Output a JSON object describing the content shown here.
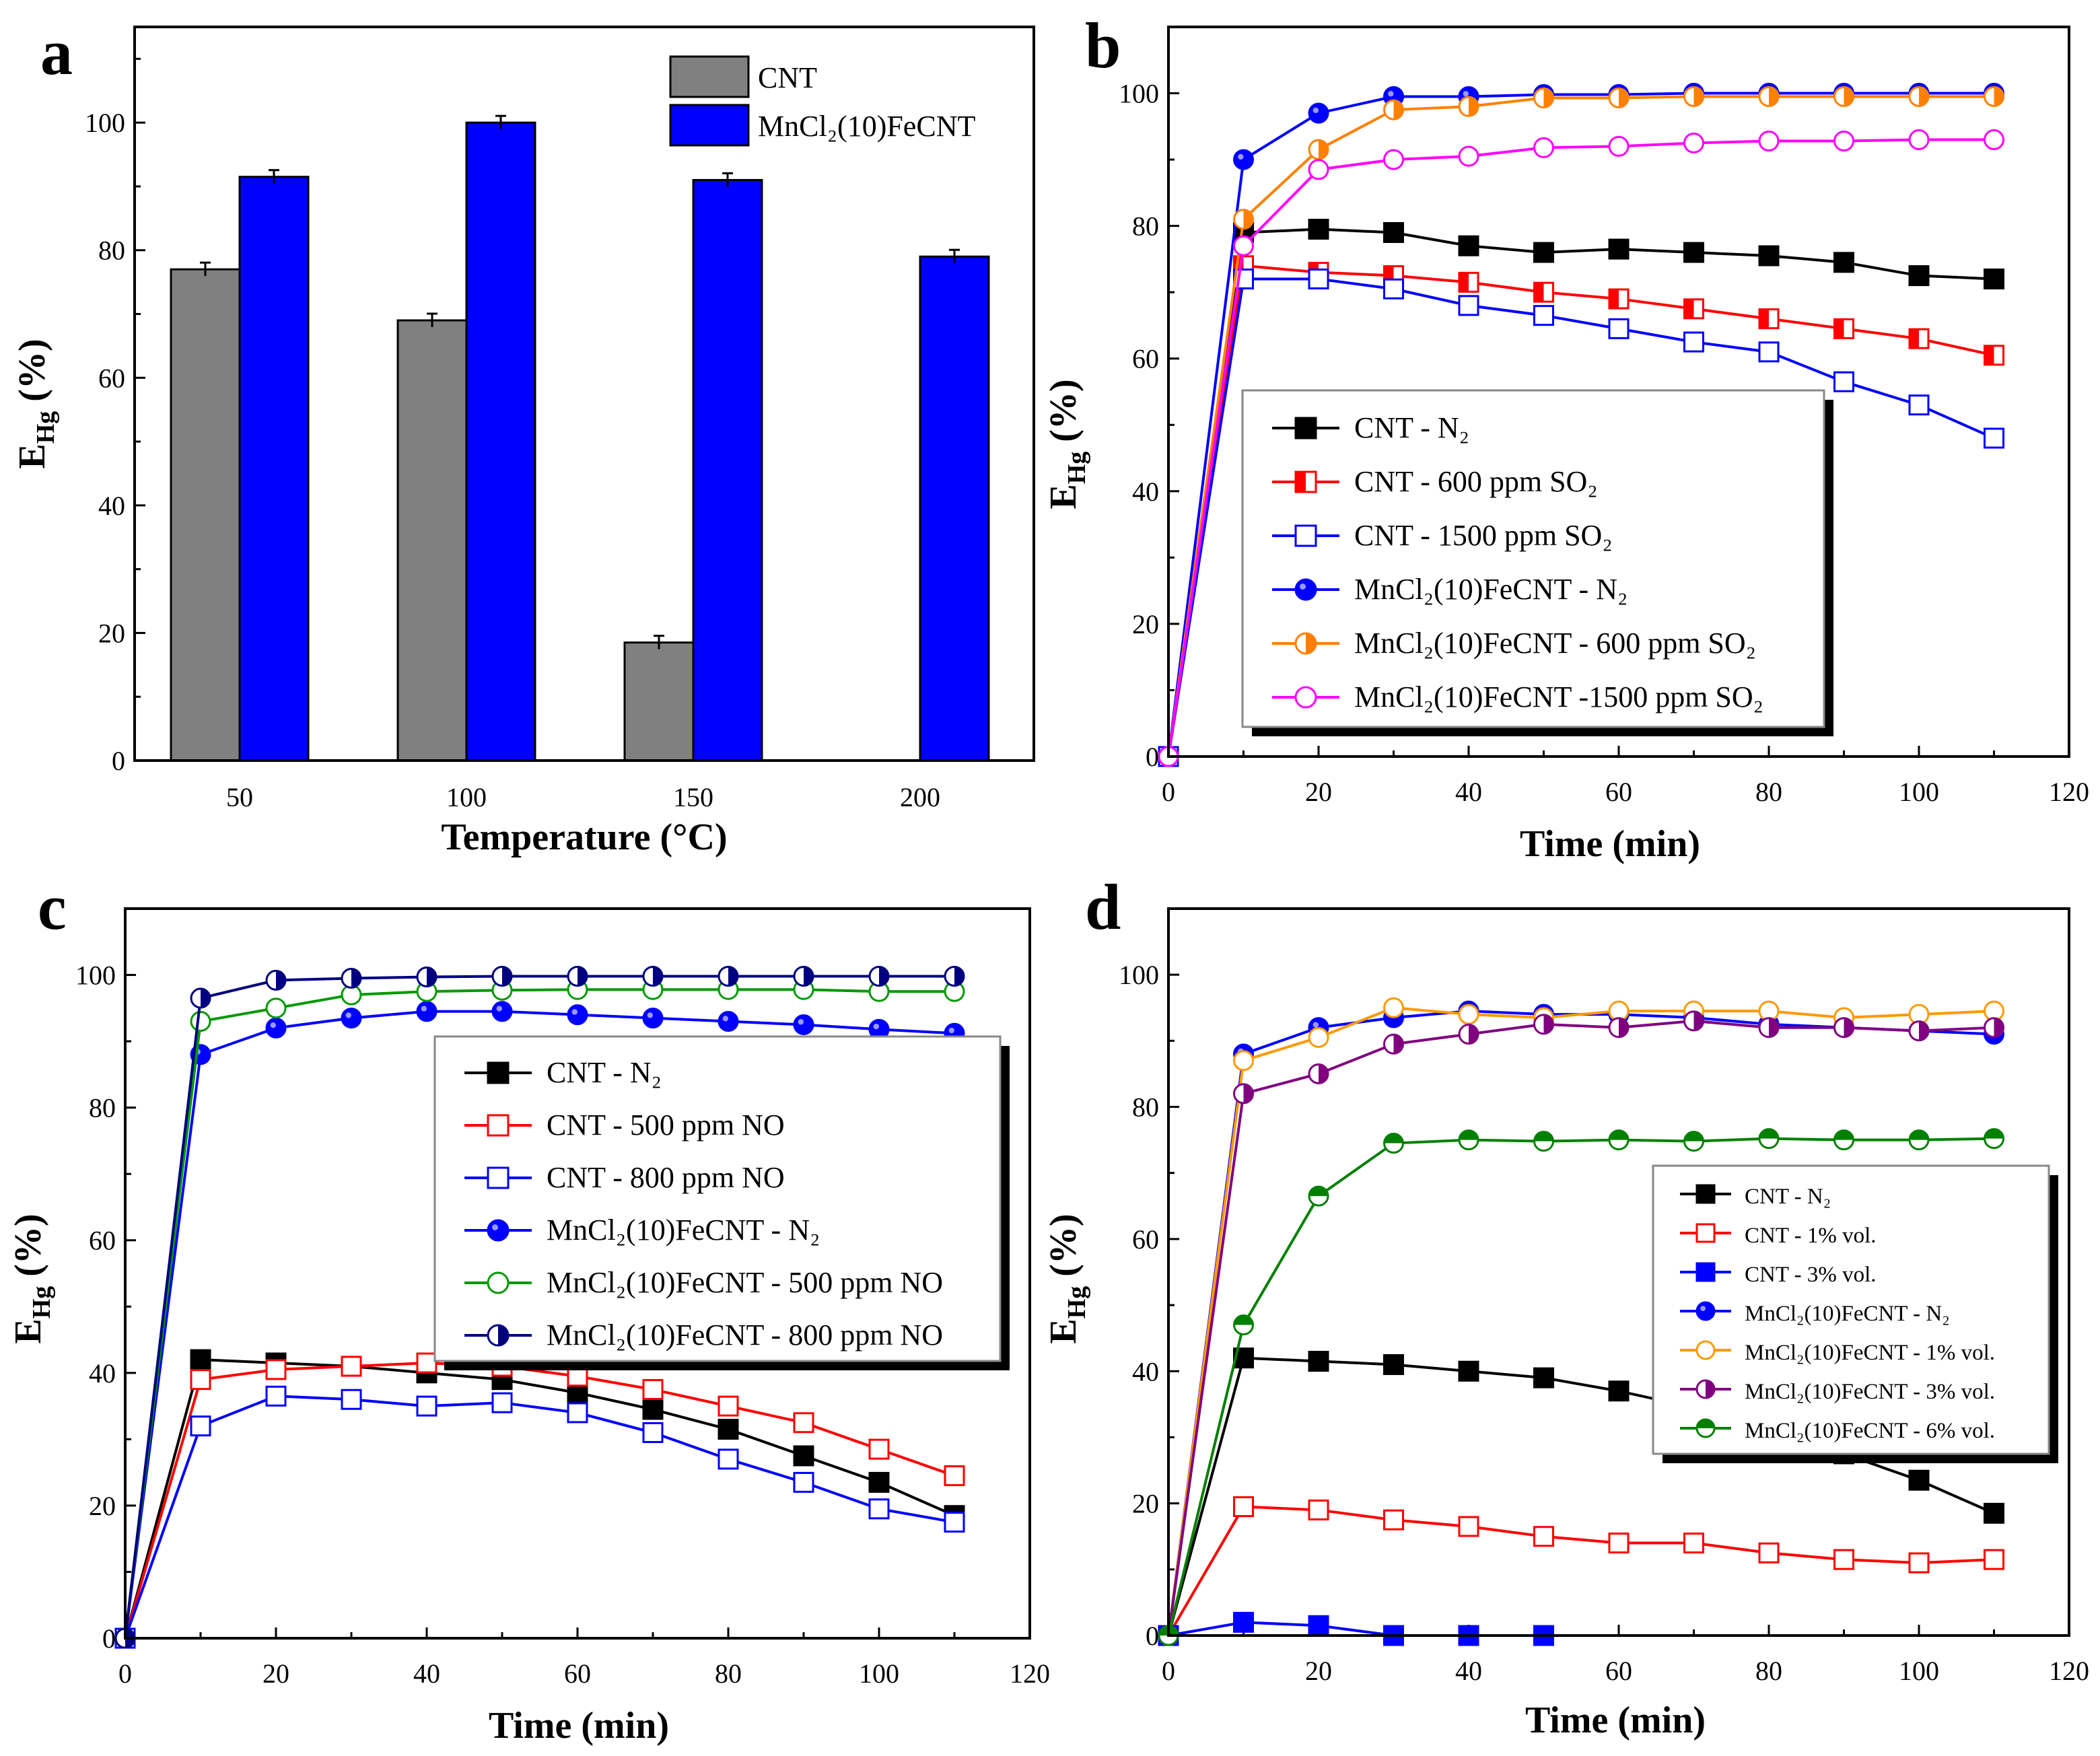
{
  "chart_data": [
    {
      "panel": "a",
      "type": "bar",
      "title": "",
      "xlabel": "Temperature (°C)",
      "ylabel": "E_Hg (%)",
      "ylabel_main": "E",
      "ylabel_sub": "Hg",
      "ylabel_tail": " (%)",
      "ylim": [
        0,
        115
      ],
      "yticks": [
        0,
        20,
        40,
        60,
        80,
        100
      ],
      "categories": [
        "50",
        "100",
        "150",
        "200"
      ],
      "series": [
        {
          "name": "CNT",
          "color": "#808080",
          "values": [
            77,
            69,
            18.5,
            null
          ]
        },
        {
          "name": "MnCl₂(10)FeCNT",
          "color": "#0000ff",
          "values": [
            91.5,
            100,
            91,
            79
          ]
        }
      ],
      "legend_position": "top-right"
    },
    {
      "panel": "b",
      "type": "line",
      "xlabel": "Time (min)",
      "ylabel": "E_Hg (%)",
      "ylabel_main": "E",
      "ylabel_sub": "Hg",
      "ylabel_tail": " (%)",
      "xlim": [
        0,
        120
      ],
      "ylim": [
        0,
        110
      ],
      "xticks": [
        0,
        20,
        40,
        60,
        80,
        100,
        120
      ],
      "yticks": [
        0,
        20,
        40,
        60,
        80,
        100
      ],
      "x": [
        0,
        10,
        20,
        30,
        40,
        50,
        60,
        70,
        80,
        90,
        100,
        110
      ],
      "series": [
        {
          "name": "CNT - N₂",
          "color": "#000000",
          "marker": "square-filled",
          "values": [
            0,
            79,
            79.5,
            79,
            77,
            76,
            76.5,
            76,
            75.5,
            74.5,
            72.5,
            72
          ]
        },
        {
          "name": "CNT - 600 ppm SO₂",
          "color": "#ff0000",
          "marker": "square-half",
          "values": [
            0,
            74,
            73,
            72.5,
            71.5,
            70,
            69,
            67.5,
            66,
            64.5,
            63,
            60.5
          ]
        },
        {
          "name": "CNT - 1500 ppm SO₂",
          "color": "#0000ff",
          "marker": "square-open",
          "values": [
            0,
            72,
            72,
            70.5,
            68,
            66.5,
            64.5,
            62.5,
            61,
            56.5,
            53,
            48
          ]
        },
        {
          "name": "MnCl₂(10)FeCNT - N₂",
          "color": "#0000ff",
          "marker": "circle-filled",
          "values": [
            0,
            90,
            97,
            99.5,
            99.5,
            99.8,
            99.8,
            100,
            100,
            100,
            100,
            100
          ]
        },
        {
          "name": "MnCl₂(10)FeCNT - 600 ppm SO₂",
          "color": "#ff8000",
          "marker": "circle-half",
          "values": [
            0,
            81,
            91.5,
            97.5,
            98,
            99.3,
            99.3,
            99.5,
            99.5,
            99.5,
            99.5,
            99.5
          ]
        },
        {
          "name": "MnCl₂(10)FeCNT -1500 ppm SO₂",
          "color": "#ff00ff",
          "marker": "circle-open",
          "values": [
            0,
            77,
            88.5,
            90,
            90.5,
            91.8,
            92,
            92.5,
            92.8,
            92.8,
            93,
            93
          ]
        }
      ],
      "legend_position": "lower-left"
    },
    {
      "panel": "c",
      "type": "line",
      "xlabel": "Time (min)",
      "ylabel": "E_Hg (%)",
      "ylabel_main": "E",
      "ylabel_sub": "Hg",
      "ylabel_tail": " (%)",
      "xlim": [
        0,
        120
      ],
      "ylim": [
        0,
        110
      ],
      "xticks": [
        0,
        20,
        40,
        60,
        80,
        100,
        120
      ],
      "yticks": [
        0,
        20,
        40,
        60,
        80,
        100
      ],
      "x": [
        0,
        10,
        20,
        30,
        40,
        50,
        60,
        70,
        80,
        90,
        100,
        110
      ],
      "series": [
        {
          "name": "CNT - N₂",
          "color": "#000000",
          "marker": "square-filled",
          "values": [
            0,
            42,
            41.5,
            41,
            40,
            39,
            37,
            34.5,
            31.5,
            27.5,
            23.5,
            18.5
          ]
        },
        {
          "name": "CNT - 500 ppm NO",
          "color": "#ff0000",
          "marker": "square-open",
          "values": [
            0,
            39,
            40.5,
            41,
            41.5,
            41,
            39.5,
            37.5,
            35,
            32.5,
            28.5,
            24.5
          ]
        },
        {
          "name": "CNT - 800 ppm NO",
          "color": "#0000ff",
          "marker": "square-open",
          "values": [
            0,
            32,
            36.5,
            36,
            35,
            35.5,
            34,
            31,
            27,
            23.5,
            19.5,
            17.5
          ]
        },
        {
          "name": "MnCl₂(10)FeCNT - N₂",
          "color": "#0000ff",
          "marker": "circle-filled",
          "values": [
            0,
            88,
            92,
            93.5,
            94.5,
            94.5,
            94,
            93.5,
            93,
            92.5,
            91.8,
            91.2
          ]
        },
        {
          "name": "MnCl₂(10)FeCNT - 500 ppm NO",
          "color": "#009900",
          "marker": "circle-open",
          "values": [
            0,
            93,
            95,
            97,
            97.5,
            97.7,
            97.8,
            97.8,
            97.8,
            97.8,
            97.5,
            97.5
          ]
        },
        {
          "name": "MnCl₂(10)FeCNT - 800 ppm NO",
          "color": "#000080",
          "marker": "circle-half",
          "values": [
            0,
            96.5,
            99.2,
            99.5,
            99.7,
            99.8,
            99.8,
            99.8,
            99.8,
            99.8,
            99.8,
            99.8
          ]
        }
      ],
      "legend_position": "center-right"
    },
    {
      "panel": "d",
      "type": "line",
      "xlabel": "Time (min)",
      "ylabel": "E_Hg (%)",
      "ylabel_main": "E",
      "ylabel_sub": "Hg",
      "ylabel_tail": " (%)",
      "xlim": [
        0,
        120
      ],
      "ylim": [
        0,
        110
      ],
      "xticks": [
        0,
        20,
        40,
        60,
        80,
        100,
        120
      ],
      "yticks": [
        0,
        20,
        40,
        60,
        80,
        100
      ],
      "x": [
        0,
        10,
        20,
        30,
        40,
        50,
        60,
        70,
        80,
        90,
        100,
        110
      ],
      "series": [
        {
          "name": "CNT - N₂",
          "color": "#000000",
          "marker": "square-filled",
          "values": [
            0,
            42,
            41.5,
            41,
            40,
            39,
            37,
            34.5,
            31.5,
            27.5,
            23.5,
            18.5
          ]
        },
        {
          "name": "CNT - 1% vol.",
          "color": "#ff0000",
          "marker": "square-open",
          "values": [
            0,
            19.5,
            19,
            17.5,
            16.5,
            15,
            14,
            14,
            12.5,
            11.5,
            11,
            11.5
          ]
        },
        {
          "name": "CNT - 3% vol.",
          "color": "#0000ff",
          "marker": "square-filled",
          "values": [
            0,
            2,
            1.5,
            0,
            0,
            0,
            null,
            null,
            null,
            null,
            null,
            null
          ]
        },
        {
          "name": "MnCl₂(10)FeCNT - N₂",
          "color": "#0000ff",
          "marker": "circle-filled",
          "values": [
            0,
            88,
            92,
            93.5,
            94.5,
            94,
            94,
            93.5,
            92.5,
            92,
            91.5,
            91
          ]
        },
        {
          "name": "MnCl₂(10)FeCNT - 1% vol.",
          "color": "#ff9900",
          "marker": "circle-open",
          "values": [
            0,
            87,
            90.5,
            95,
            94,
            93.5,
            94.5,
            94.5,
            94.5,
            93.5,
            94,
            94.5
          ]
        },
        {
          "name": "MnCl₂(10)FeCNT - 3% vol.",
          "color": "#800080",
          "marker": "circle-half",
          "values": [
            0,
            82,
            85,
            89.5,
            91,
            92.5,
            92,
            93,
            92,
            92,
            91.5,
            92
          ]
        },
        {
          "name": "MnCl₂(10)FeCNT - 6% vol.",
          "color": "#008000",
          "marker": "circle-halfh",
          "values": [
            0,
            47,
            66.5,
            74.5,
            75,
            74.8,
            75,
            74.8,
            75.2,
            75,
            75,
            75.2
          ]
        }
      ],
      "legend_position": "center-right"
    }
  ]
}
